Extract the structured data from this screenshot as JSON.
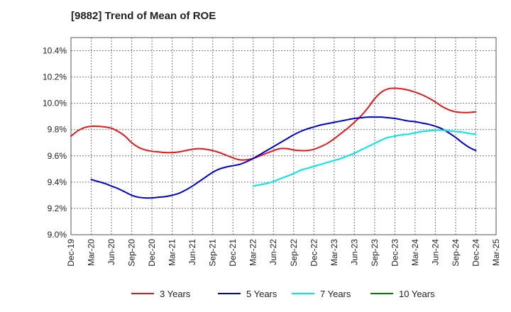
{
  "chart_data": {
    "type": "line",
    "title": "[9882]  Trend of Mean of ROE",
    "xlabel": "",
    "ylabel": "",
    "ylim": [
      9.0,
      10.5
    ],
    "y_ticks": [
      "9.0%",
      "9.2%",
      "9.4%",
      "9.6%",
      "9.8%",
      "10.0%",
      "10.2%",
      "10.4%"
    ],
    "y_tick_values": [
      9.0,
      9.2,
      9.4,
      9.6,
      9.8,
      10.0,
      10.2,
      10.4
    ],
    "x_ticks": [
      "Dec-19",
      "Mar-20",
      "Jun-20",
      "Sep-20",
      "Dec-20",
      "Mar-21",
      "Jun-21",
      "Sep-21",
      "Dec-21",
      "Mar-22",
      "Jun-22",
      "Sep-22",
      "Dec-22",
      "Mar-23",
      "Jun-23",
      "Sep-23",
      "Dec-23",
      "Mar-24",
      "Jun-24",
      "Sep-24",
      "Dec-24",
      "Mar-25"
    ],
    "grid": true,
    "legend_position": "bottom",
    "series": [
      {
        "name": "3 Years",
        "color": "#e31a1c",
        "x": [
          "Dec-19",
          "Jan-20",
          "Feb-20",
          "Mar-20",
          "Apr-20",
          "May-20",
          "Jun-20",
          "Jul-20",
          "Aug-20",
          "Sep-20",
          "Oct-20",
          "Nov-20",
          "Dec-20",
          "Jan-21",
          "Feb-21",
          "Mar-21",
          "Apr-21",
          "May-21",
          "Jun-21",
          "Jul-21",
          "Aug-21",
          "Sep-21",
          "Oct-21",
          "Nov-21",
          "Dec-21",
          "Jan-22",
          "Feb-22",
          "Mar-22",
          "Apr-22",
          "May-22",
          "Jun-22",
          "Jul-22",
          "Aug-22",
          "Sep-22",
          "Oct-22",
          "Nov-22",
          "Dec-22",
          "Jan-23",
          "Feb-23",
          "Mar-23",
          "Apr-23",
          "May-23",
          "Jun-23",
          "Jul-23",
          "Aug-23",
          "Sep-23",
          "Oct-23",
          "Nov-23",
          "Dec-23",
          "Jan-24",
          "Feb-24",
          "Mar-24",
          "Apr-24",
          "May-24",
          "Jun-24",
          "Jul-24",
          "Aug-24",
          "Sep-24",
          "Oct-24",
          "Nov-24",
          "Dec-24"
        ],
        "values": [
          9.75,
          9.79,
          9.815,
          9.825,
          9.825,
          9.82,
          9.81,
          9.785,
          9.75,
          9.7,
          9.665,
          9.645,
          9.635,
          9.63,
          9.625,
          9.625,
          9.63,
          9.64,
          9.65,
          9.655,
          9.65,
          9.64,
          9.625,
          9.605,
          9.585,
          9.57,
          9.57,
          9.58,
          9.6,
          9.62,
          9.64,
          9.655,
          9.655,
          9.645,
          9.64,
          9.64,
          9.65,
          9.67,
          9.695,
          9.73,
          9.77,
          9.81,
          9.855,
          9.905,
          9.965,
          10.035,
          10.085,
          10.11,
          10.115,
          10.11,
          10.1,
          10.085,
          10.065,
          10.04,
          10.01,
          9.975,
          9.95,
          9.935,
          9.93,
          9.93,
          9.935
        ]
      },
      {
        "name": "5 Years",
        "color": "#0000cc",
        "x": [
          "Mar-20",
          "Apr-20",
          "May-20",
          "Jun-20",
          "Jul-20",
          "Aug-20",
          "Sep-20",
          "Oct-20",
          "Nov-20",
          "Dec-20",
          "Jan-21",
          "Feb-21",
          "Mar-21",
          "Apr-21",
          "May-21",
          "Jun-21",
          "Jul-21",
          "Aug-21",
          "Sep-21",
          "Oct-21",
          "Nov-21",
          "Dec-21",
          "Jan-22",
          "Feb-22",
          "Mar-22",
          "Apr-22",
          "May-22",
          "Jun-22",
          "Jul-22",
          "Aug-22",
          "Sep-22",
          "Oct-22",
          "Nov-22",
          "Dec-22",
          "Jan-23",
          "Feb-23",
          "Mar-23",
          "Apr-23",
          "May-23",
          "Jun-23",
          "Jul-23",
          "Aug-23",
          "Sep-23",
          "Oct-23",
          "Nov-23",
          "Dec-23",
          "Jan-24",
          "Feb-24",
          "Mar-24",
          "Apr-24",
          "May-24",
          "Jun-24",
          "Jul-24",
          "Aug-24",
          "Sep-24",
          "Oct-24",
          "Nov-24",
          "Dec-24"
        ],
        "values": [
          9.42,
          9.405,
          9.39,
          9.37,
          9.35,
          9.325,
          9.3,
          9.285,
          9.28,
          9.28,
          9.285,
          9.29,
          9.3,
          9.315,
          9.34,
          9.37,
          9.405,
          9.44,
          9.475,
          9.5,
          9.515,
          9.525,
          9.535,
          9.555,
          9.58,
          9.61,
          9.64,
          9.67,
          9.7,
          9.73,
          9.76,
          9.785,
          9.805,
          9.82,
          9.835,
          9.845,
          9.855,
          9.865,
          9.875,
          9.885,
          9.89,
          9.895,
          9.895,
          9.895,
          9.89,
          9.885,
          9.875,
          9.865,
          9.86,
          9.85,
          9.84,
          9.825,
          9.805,
          9.775,
          9.74,
          9.7,
          9.665,
          9.64
        ]
      },
      {
        "name": "7 Years",
        "color": "#00e5e5",
        "x": [
          "Mar-22",
          "Apr-22",
          "May-22",
          "Jun-22",
          "Jul-22",
          "Aug-22",
          "Sep-22",
          "Oct-22",
          "Nov-22",
          "Dec-22",
          "Jan-23",
          "Feb-23",
          "Mar-23",
          "Apr-23",
          "May-23",
          "Jun-23",
          "Jul-23",
          "Aug-23",
          "Sep-23",
          "Oct-23",
          "Nov-23",
          "Dec-23",
          "Jan-24",
          "Feb-24",
          "Mar-24",
          "Apr-24",
          "May-24",
          "Jun-24",
          "Jul-24",
          "Aug-24",
          "Sep-24",
          "Oct-24",
          "Nov-24",
          "Dec-24"
        ],
        "values": [
          9.37,
          9.38,
          9.39,
          9.405,
          9.425,
          9.445,
          9.465,
          9.49,
          9.505,
          9.52,
          9.535,
          9.55,
          9.565,
          9.58,
          9.6,
          9.62,
          9.645,
          9.67,
          9.695,
          9.72,
          9.74,
          9.75,
          9.76,
          9.765,
          9.775,
          9.785,
          9.79,
          9.795,
          9.795,
          9.79,
          9.785,
          9.78,
          9.77,
          9.765
        ]
      },
      {
        "name": "10 Years",
        "color": "#008000",
        "x": [],
        "values": []
      }
    ]
  }
}
